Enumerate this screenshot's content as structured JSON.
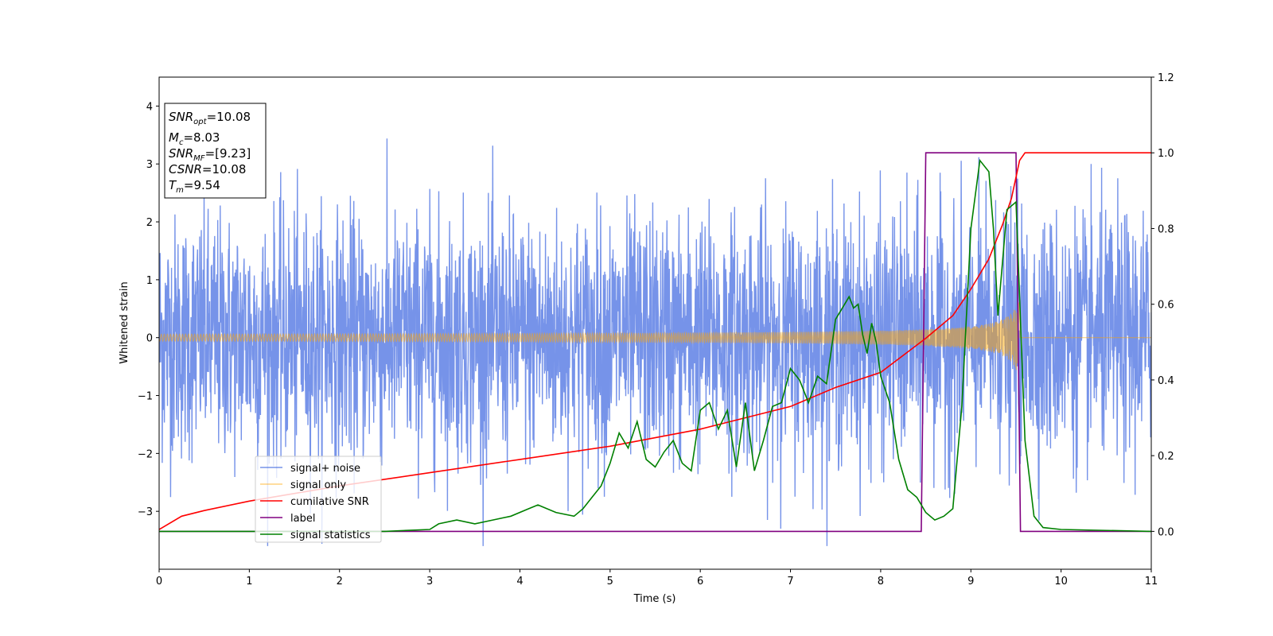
{
  "chart_data": {
    "type": "line",
    "title": "",
    "xlabel": "Time (s)",
    "ylabel": "Whitened strain",
    "xlim": [
      0,
      11
    ],
    "ylim": [
      -4,
      4.5
    ],
    "ylim_right": [
      -0.1,
      1.2
    ],
    "xticks": [
      "0",
      "1",
      "2",
      "3",
      "4",
      "5",
      "6",
      "7",
      "8",
      "9",
      "10",
      "11"
    ],
    "yticks": [
      "−3",
      "−2",
      "−1",
      "0",
      "1",
      "2",
      "3",
      "4"
    ],
    "yticks_right": [
      "0.0",
      "0.2",
      "0.4",
      "0.6",
      "0.8",
      "1.0",
      "1.2"
    ],
    "grid": false,
    "legend_position": "lower-left",
    "legend": [
      {
        "label": "signal+ noise",
        "color": "#4169e1"
      },
      {
        "label": "signal only",
        "color": "#ffa500"
      },
      {
        "label": "cumilative SNR",
        "color": "#ff0000"
      },
      {
        "label": "label",
        "color": "#800080"
      },
      {
        "label": "signal statistics",
        "color": "#008000"
      }
    ],
    "annotation": {
      "line1": {
        "name": "SNR",
        "sub": "opt",
        "value": "=10.08"
      },
      "line2": {
        "name": "M",
        "sub": "c",
        "value": "=8.03"
      },
      "line3": {
        "name": "SNR",
        "sub": "MF",
        "value": "=[9.23]"
      },
      "line4": {
        "name": "CSNR",
        "sub": "",
        "value": "=10.08"
      },
      "line5": {
        "name": "T",
        "sub": "m",
        "value": "=9.54"
      }
    },
    "series": [
      {
        "name": "signal+ noise",
        "axis": "left",
        "description_values": "white noise, approx. range -3.6 to 3.6",
        "x_range": [
          0,
          11
        ]
      },
      {
        "name": "signal only",
        "axis": "left",
        "chirp_envelope_start": 0.03,
        "chirp_envelope_end": 0.75,
        "merger_time": 9.54
      },
      {
        "name": "cumilative SNR",
        "axis": "right",
        "x": [
          0,
          0.25,
          0.5,
          1,
          2,
          3,
          4,
          5,
          6,
          6.5,
          7,
          7.5,
          8,
          8.5,
          8.8,
          9,
          9.2,
          9.35,
          9.45,
          9.54,
          9.6,
          11
        ],
        "y": [
          0.005,
          0.04,
          0.055,
          0.08,
          0.12,
          0.155,
          0.19,
          0.225,
          0.27,
          0.3,
          0.33,
          0.38,
          0.42,
          0.51,
          0.57,
          0.64,
          0.72,
          0.81,
          0.88,
          0.98,
          1.0,
          1.0
        ]
      },
      {
        "name": "label",
        "axis": "right",
        "x": [
          0,
          8.45,
          8.5,
          9.5,
          9.55,
          11
        ],
        "y": [
          0,
          0,
          1,
          1,
          0,
          0
        ]
      },
      {
        "name": "signal statistics",
        "axis": "right",
        "x": [
          0,
          2.5,
          3,
          3.1,
          3.3,
          3.5,
          3.7,
          3.9,
          4.1,
          4.2,
          4.4,
          4.6,
          4.7,
          4.8,
          4.9,
          5.0,
          5.1,
          5.2,
          5.3,
          5.4,
          5.5,
          5.6,
          5.7,
          5.8,
          5.9,
          6.0,
          6.1,
          6.2,
          6.3,
          6.4,
          6.5,
          6.6,
          6.7,
          6.8,
          6.9,
          7.0,
          7.1,
          7.2,
          7.3,
          7.4,
          7.5,
          7.6,
          7.65,
          7.7,
          7.75,
          7.8,
          7.85,
          7.9,
          7.95,
          8.0,
          8.1,
          8.2,
          8.3,
          8.4,
          8.5,
          8.6,
          8.7,
          8.8,
          8.9,
          9.0,
          9.1,
          9.2,
          9.25,
          9.3,
          9.4,
          9.5,
          9.6,
          9.7,
          9.8,
          10.0,
          11.0
        ],
        "y": [
          0,
          0,
          0.005,
          0.02,
          0.03,
          0.02,
          0.03,
          0.04,
          0.06,
          0.07,
          0.05,
          0.04,
          0.06,
          0.09,
          0.12,
          0.18,
          0.26,
          0.22,
          0.29,
          0.19,
          0.17,
          0.21,
          0.24,
          0.18,
          0.16,
          0.32,
          0.34,
          0.27,
          0.32,
          0.17,
          0.34,
          0.16,
          0.24,
          0.33,
          0.34,
          0.43,
          0.4,
          0.34,
          0.41,
          0.39,
          0.56,
          0.6,
          0.62,
          0.59,
          0.6,
          0.52,
          0.47,
          0.55,
          0.5,
          0.41,
          0.34,
          0.19,
          0.11,
          0.09,
          0.05,
          0.03,
          0.04,
          0.06,
          0.33,
          0.8,
          0.98,
          0.95,
          0.8,
          0.57,
          0.85,
          0.87,
          0.24,
          0.04,
          0.01,
          0.005,
          0.0
        ]
      }
    ]
  }
}
